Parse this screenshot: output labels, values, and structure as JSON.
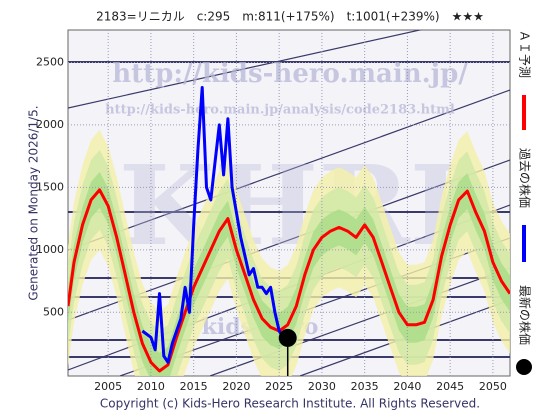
{
  "chart_data": {
    "type": "line",
    "title": "2183=リニカル　c:295　m:811(+175%)　t:1001(+239%)　★★★",
    "generated": "Generated on Monday 2026/1/5.",
    "copyright": "Copyright (c) Kids-Hero Research Institute. All Rights Reserved.",
    "watermarks": [
      "http://kids-hero.main.jp/",
      "http://kids-hero.main.jp/analysis/code2183.html",
      "KHRI",
      "kids-hero"
    ],
    "xlim": [
      2000.3,
      2052
    ],
    "ylim": [
      -10,
      2760
    ],
    "xticks": [
      2005,
      2010,
      2015,
      2020,
      2025,
      2030,
      2035,
      2040,
      2045,
      2050
    ],
    "yticks": [
      500,
      1000,
      1500,
      2000,
      2500
    ],
    "series": [
      {
        "name": "ＡＩ予測",
        "color": "#ff0000",
        "x": [
          2000.3,
          2001,
          2002,
          2003,
          2004,
          2005,
          2006,
          2007,
          2008,
          2009,
          2010,
          2011,
          2012,
          2013,
          2014,
          2015,
          2016,
          2017,
          2018,
          2019,
          2020,
          2021,
          2022,
          2023,
          2024,
          2025,
          2026,
          2027,
          2028,
          2029,
          2030,
          2031,
          2032,
          2033,
          2034,
          2035,
          2036,
          2037,
          2038,
          2039,
          2040,
          2041,
          2042,
          2043,
          2044,
          2045,
          2046,
          2047,
          2048,
          2049,
          2050,
          2051,
          2052
        ],
        "values": [
          550,
          900,
          1200,
          1400,
          1480,
          1350,
          1100,
          800,
          500,
          250,
          100,
          30,
          80,
          300,
          500,
          700,
          850,
          1000,
          1150,
          1250,
          1000,
          800,
          600,
          450,
          380,
          350,
          400,
          550,
          800,
          1000,
          1100,
          1150,
          1180,
          1150,
          1100,
          1200,
          1100,
          900,
          700,
          500,
          400,
          400,
          420,
          600,
          950,
          1200,
          1400,
          1470,
          1300,
          1150,
          900,
          750,
          650
        ]
      },
      {
        "name": "過去の株価",
        "color": "#0000ff",
        "x": [
          2009,
          2010,
          2010.5,
          2011,
          2011.5,
          2012,
          2012.5,
          2013,
          2013.5,
          2014,
          2014.5,
          2015,
          2015.5,
          2016,
          2016.5,
          2017,
          2017.5,
          2018,
          2018.5,
          2019,
          2019.5,
          2020,
          2020.5,
          2021,
          2021.5,
          2022,
          2022.5,
          2023,
          2023.5,
          2024,
          2024.5,
          2025,
          2025.5
        ],
        "values": [
          350,
          300,
          200,
          650,
          150,
          100,
          250,
          350,
          450,
          700,
          500,
          1200,
          1800,
          2300,
          1500,
          1400,
          1700,
          2000,
          1600,
          2050,
          1500,
          1300,
          1100,
          950,
          800,
          850,
          700,
          700,
          650,
          700,
          500,
          350,
          300
        ]
      },
      {
        "name": "最新の株価",
        "color": "#000000",
        "x": [
          2026
        ],
        "values": [
          295
        ]
      }
    ]
  }
}
